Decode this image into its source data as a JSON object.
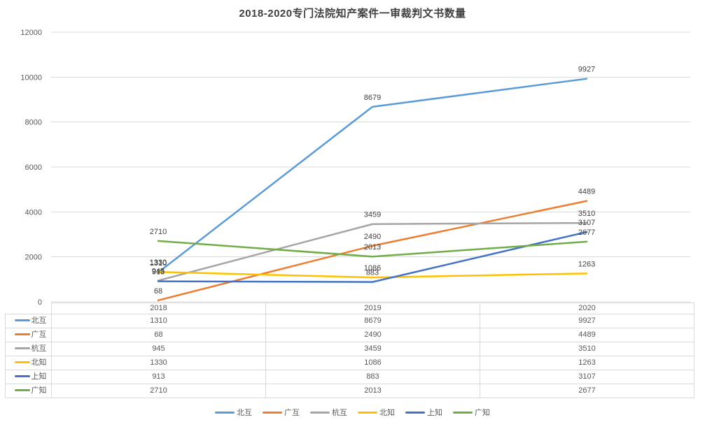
{
  "title": "2018-2020专门法院知产案件一审裁判文书数量",
  "colors": {
    "title_text": "#404040",
    "axis_text": "#595959",
    "gridline": "#D9D9D9",
    "data_label_text": "#404040",
    "table_border": "#D9D9D9",
    "table_text": "#595959"
  },
  "chart_data": {
    "type": "line",
    "title": "2018-2020专门法院知产案件一审裁判文书数量",
    "categories": [
      "2018",
      "2019",
      "2020"
    ],
    "series": [
      {
        "name": "北互",
        "color": "#5B9BD5",
        "values": [
          1310,
          8679,
          9927
        ]
      },
      {
        "name": "广互",
        "color": "#ED7D31",
        "values": [
          68,
          2490,
          4489
        ]
      },
      {
        "name": "杭互",
        "color": "#A5A5A5",
        "values": [
          945,
          3459,
          3510
        ]
      },
      {
        "name": "北知",
        "color": "#FFC000",
        "values": [
          1330,
          1086,
          1263
        ]
      },
      {
        "name": "上知",
        "color": "#4472C4",
        "values": [
          913,
          883,
          3107
        ]
      },
      {
        "name": "广知",
        "color": "#70AD47",
        "values": [
          2710,
          2013,
          2677
        ]
      }
    ],
    "ylim": [
      0,
      12000
    ],
    "y_ticks": [
      0,
      2000,
      4000,
      6000,
      8000,
      10000,
      12000
    ],
    "grid": true,
    "data_labels": true,
    "legend_position": "bottom",
    "data_table_shown": true
  }
}
